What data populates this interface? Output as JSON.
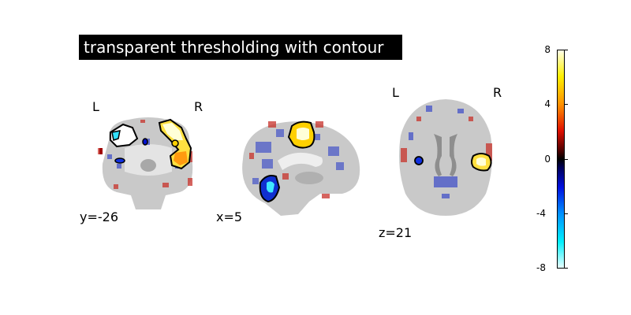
{
  "title": "transparent thresholding with contour",
  "views": [
    {
      "name": "coronal",
      "coord": "y=-26",
      "left_label": "L",
      "right_label": "R"
    },
    {
      "name": "sagittal",
      "coord": "x=5"
    },
    {
      "name": "axial",
      "coord": "z=21",
      "left_label": "L",
      "right_label": "R"
    }
  ],
  "colorbar": {
    "ticks": [
      "8",
      "4",
      "0",
      "-4",
      "-8"
    ],
    "range": [
      -8,
      8
    ],
    "colors": {
      "max": "#ffffe8",
      "mid": "#000000",
      "min": "#e8ffff"
    }
  }
}
